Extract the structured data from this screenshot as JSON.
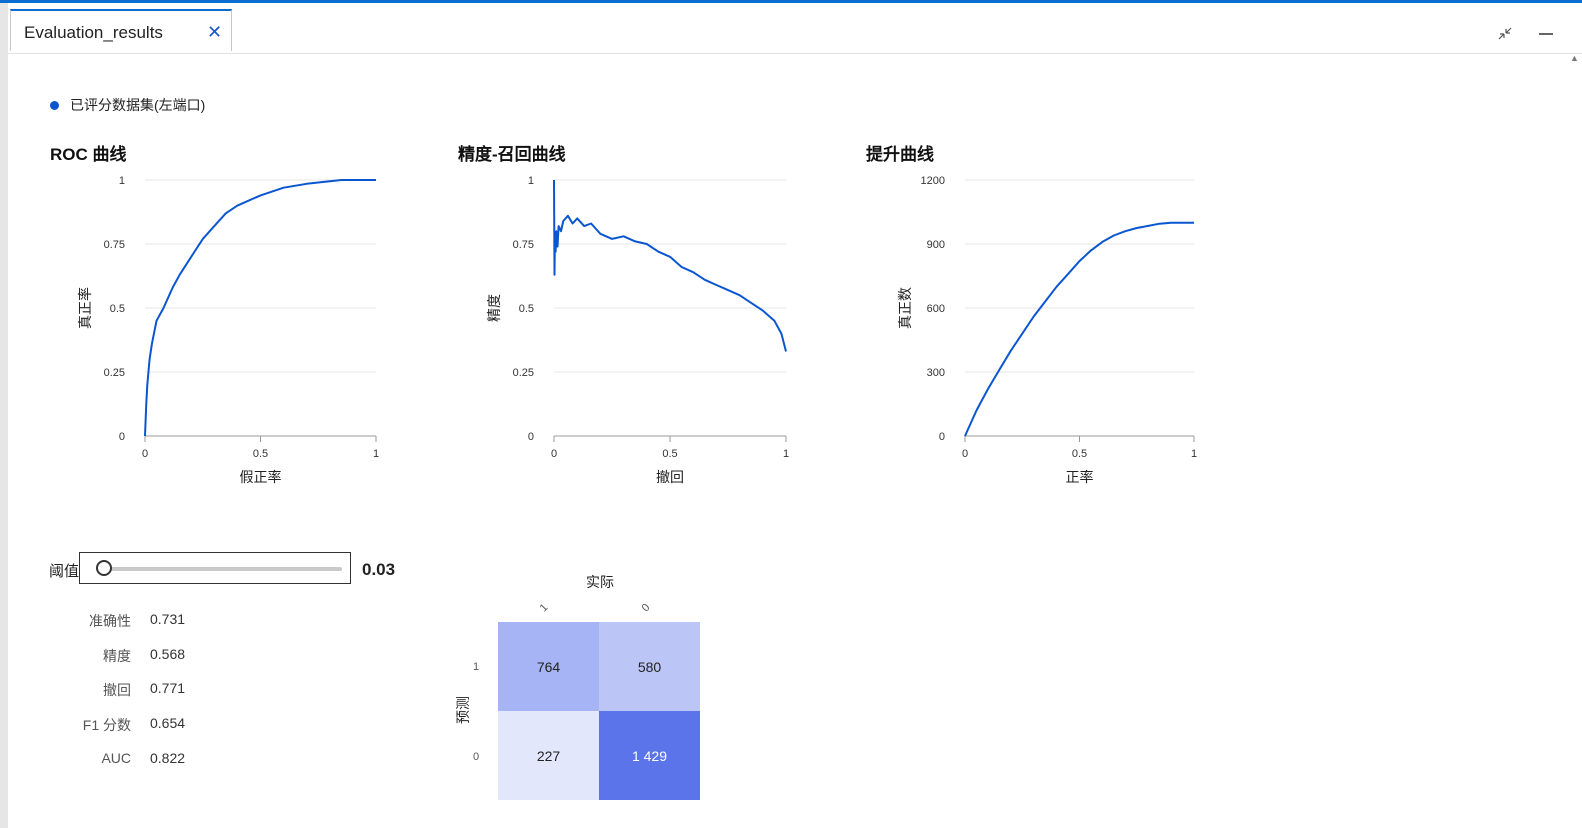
{
  "tab": {
    "title": "Evaluation_results",
    "close_glyph": "✕"
  },
  "window": {
    "restore_icon": "shrink-icon",
    "minimize_icon": "minimize-icon"
  },
  "accent_color": "#0a56d0",
  "legend": {
    "label": "已评分数据集(左端口)"
  },
  "roc": {
    "title": "ROC 曲线",
    "chart_data": {
      "type": "line",
      "xlabel": "假正率",
      "ylabel": "真正率",
      "xlim": [
        0,
        1
      ],
      "ylim": [
        0,
        1
      ],
      "x_ticks": [
        "0",
        "0.5",
        "1"
      ],
      "y_ticks": [
        "0",
        "0.25",
        "0.5",
        "0.75",
        "1"
      ],
      "grid": true,
      "x": [
        0,
        0.005,
        0.01,
        0.02,
        0.03,
        0.05,
        0.08,
        0.12,
        0.15,
        0.2,
        0.25,
        0.3,
        0.35,
        0.4,
        0.5,
        0.6,
        0.7,
        0.8,
        0.85,
        1.0
      ],
      "y": [
        0,
        0.12,
        0.2,
        0.3,
        0.36,
        0.45,
        0.5,
        0.58,
        0.63,
        0.7,
        0.77,
        0.82,
        0.87,
        0.9,
        0.94,
        0.97,
        0.985,
        0.995,
        1.0,
        1.0
      ]
    }
  },
  "pr": {
    "title": "精度-召回曲线",
    "chart_data": {
      "type": "line",
      "xlabel": "撤回",
      "ylabel": "精度",
      "xlim": [
        0,
        1
      ],
      "ylim": [
        0,
        1
      ],
      "x_ticks": [
        "0",
        "0.5",
        "1"
      ],
      "y_ticks": [
        "0",
        "0.25",
        "0.5",
        "0.75",
        "1"
      ],
      "grid": true,
      "x": [
        0,
        0.002,
        0.004,
        0.007,
        0.01,
        0.015,
        0.02,
        0.03,
        0.04,
        0.06,
        0.08,
        0.1,
        0.13,
        0.16,
        0.2,
        0.25,
        0.3,
        0.35,
        0.4,
        0.45,
        0.5,
        0.55,
        0.6,
        0.65,
        0.7,
        0.75,
        0.8,
        0.85,
        0.9,
        0.95,
        0.98,
        1.0
      ],
      "y": [
        1.0,
        0.63,
        0.78,
        0.72,
        0.8,
        0.74,
        0.82,
        0.8,
        0.84,
        0.86,
        0.83,
        0.85,
        0.82,
        0.83,
        0.79,
        0.77,
        0.78,
        0.76,
        0.75,
        0.72,
        0.7,
        0.66,
        0.64,
        0.61,
        0.59,
        0.57,
        0.55,
        0.52,
        0.49,
        0.45,
        0.4,
        0.33
      ]
    }
  },
  "lift": {
    "title": "提升曲线",
    "chart_data": {
      "type": "line",
      "xlabel": "正率",
      "ylabel": "真正数",
      "xlim": [
        0,
        1
      ],
      "ylim": [
        0,
        1200
      ],
      "x_ticks": [
        "0",
        "0.5",
        "1"
      ],
      "y_ticks": [
        "0",
        "300",
        "600",
        "900",
        "1200"
      ],
      "grid": true,
      "x": [
        0,
        0.05,
        0.1,
        0.15,
        0.2,
        0.25,
        0.3,
        0.35,
        0.4,
        0.45,
        0.5,
        0.55,
        0.6,
        0.65,
        0.7,
        0.75,
        0.8,
        0.85,
        0.9,
        0.95,
        1.0
      ],
      "y": [
        0,
        120,
        220,
        310,
        400,
        480,
        560,
        630,
        700,
        760,
        820,
        870,
        910,
        940,
        960,
        975,
        985,
        995,
        1000,
        1000,
        1000
      ]
    }
  },
  "threshold": {
    "label": "阈值",
    "value": "0.03",
    "fraction": 0.03
  },
  "metrics": [
    {
      "name": "准确性",
      "value": "0.731"
    },
    {
      "name": "精度",
      "value": "0.568"
    },
    {
      "name": "撤回",
      "value": "0.771"
    },
    {
      "name": "F1 分数",
      "value": "0.654"
    },
    {
      "name": "AUC",
      "value": "0.822"
    }
  ],
  "confusion": {
    "title": "实际",
    "ylabel": "预测",
    "col_labels": [
      "1",
      "0"
    ],
    "row_labels": [
      "1",
      "0"
    ],
    "cells": [
      [
        "764",
        "580"
      ],
      [
        "227",
        "1 429"
      ]
    ],
    "colors": [
      [
        "#a6b3f4",
        "#bcc6f6"
      ],
      [
        "#e3e7fb",
        "#5b74ea"
      ]
    ]
  }
}
